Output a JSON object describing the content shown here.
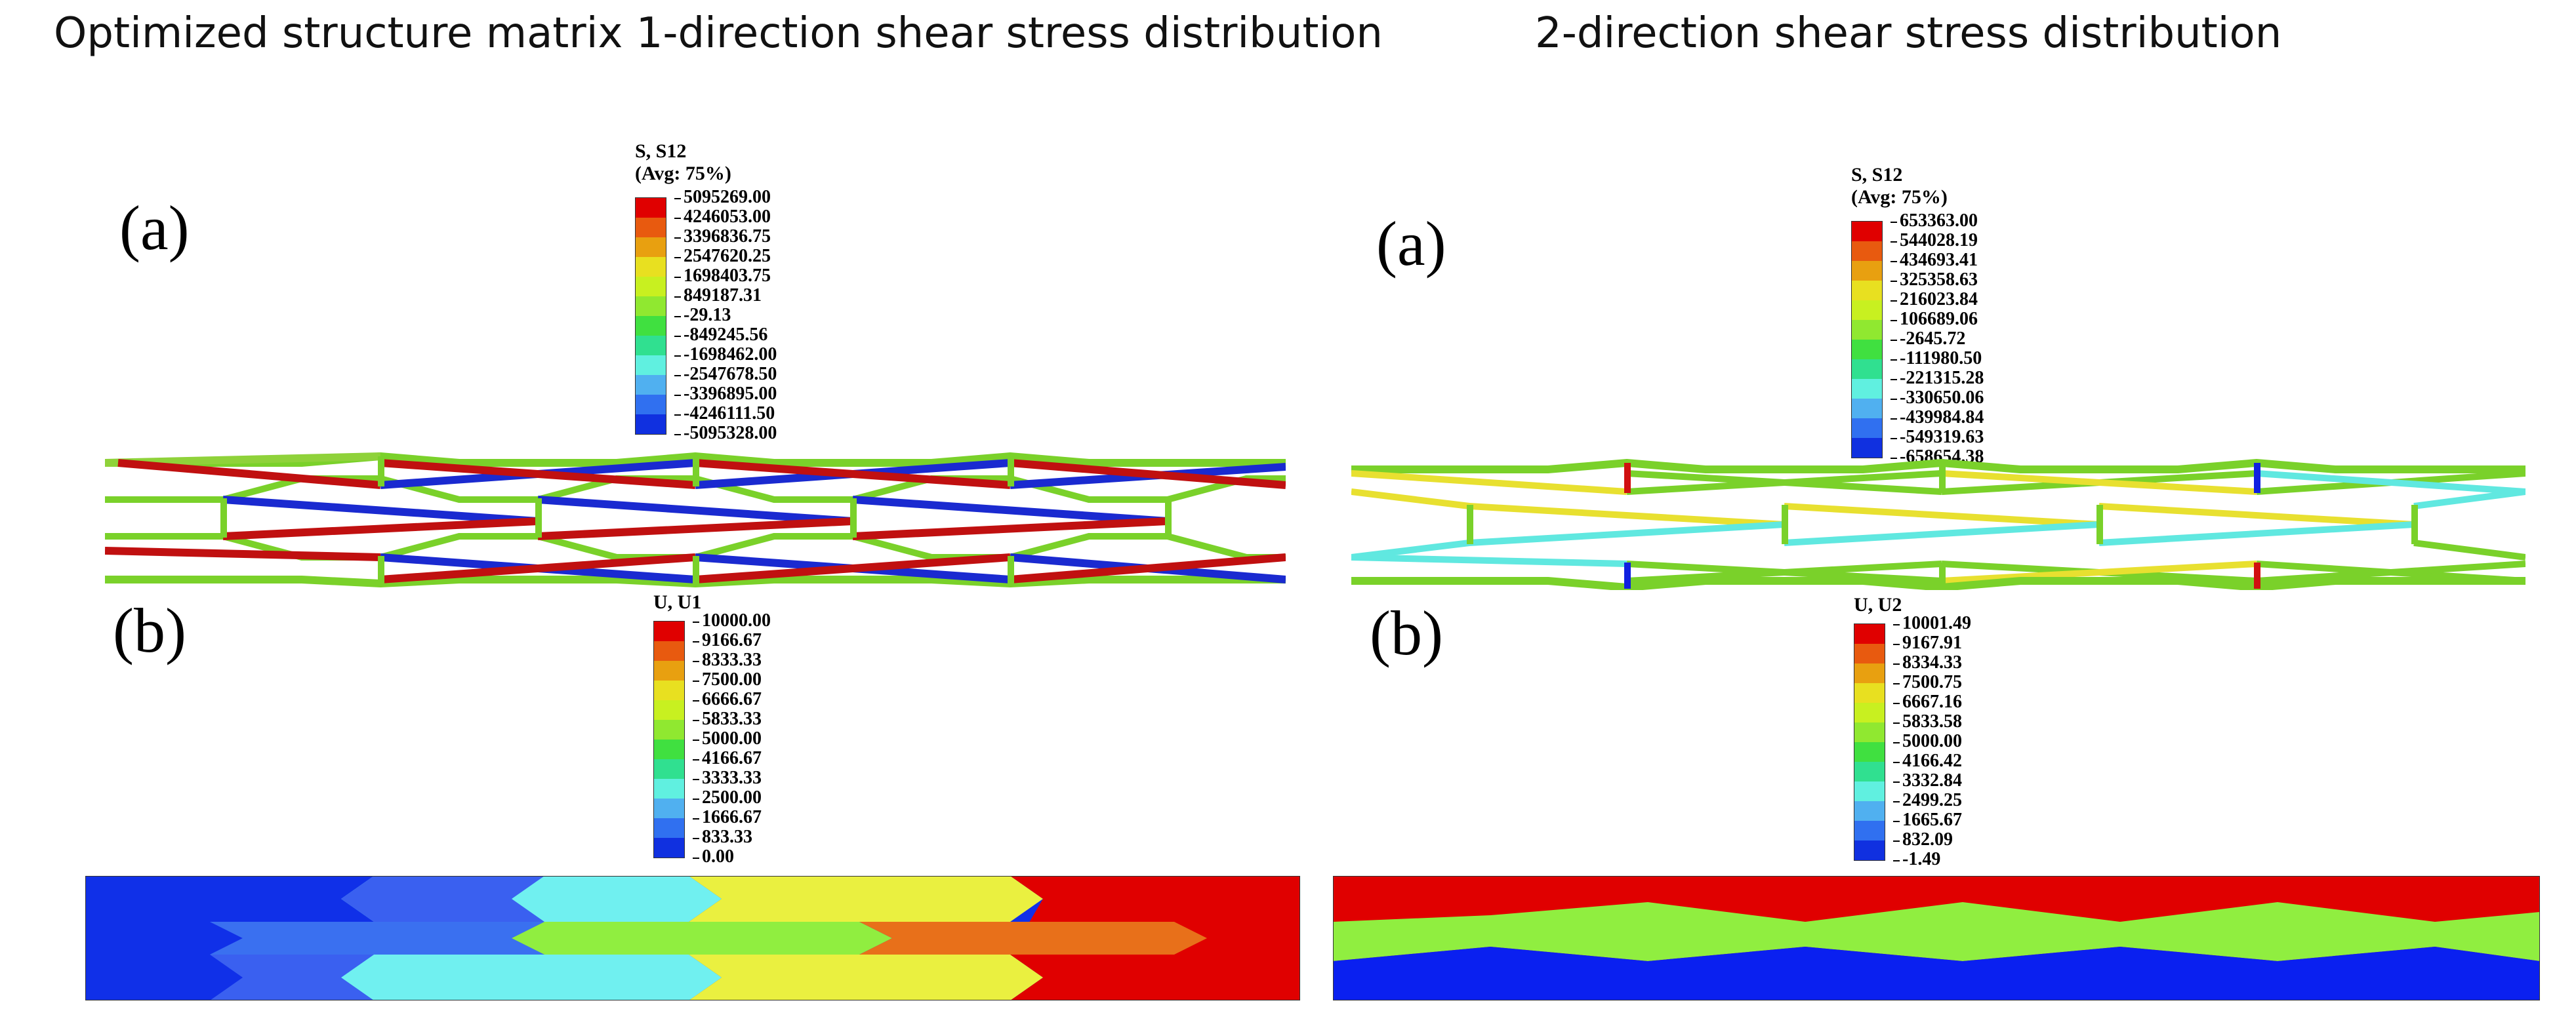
{
  "titles": {
    "left": "Optimized structure matrix 1-direction shear stress distribution",
    "right": "2-direction shear stress distribution"
  },
  "panel_labels": {
    "a": "(a)",
    "b": "(b)"
  },
  "legend_colors": [
    "#e00000",
    "#e85a0f",
    "#e8a010",
    "#e8e020",
    "#c8f020",
    "#90e830",
    "#40e040",
    "#30e090",
    "#60f0e0",
    "#50b0f0",
    "#3070f0",
    "#1030e0",
    "#0010f0"
  ],
  "legends": {
    "left_a": {
      "title1": "S, S12",
      "title2": "(Avg: 75%)",
      "values": [
        "5095269.00",
        "4246053.00",
        "3396836.75",
        "2547620.25",
        "1698403.75",
        "849187.31",
        "-29.13",
        "-849245.56",
        "-1698462.00",
        "-2547678.50",
        "-3396895.00",
        "-4246111.50",
        "-5095328.00"
      ]
    },
    "right_a": {
      "title1": "S, S12",
      "title2": "(Avg: 75%)",
      "values": [
        "653363.00",
        "544028.19",
        "434693.41",
        "325358.63",
        "216023.84",
        "106689.06",
        "-2645.72",
        "-111980.50",
        "-221315.28",
        "-330650.06",
        "-439984.84",
        "-549319.63",
        "-658654.38"
      ]
    },
    "left_b": {
      "title1": "U, U1",
      "title2": "",
      "values": [
        "10000.00",
        "9166.67",
        "8333.33",
        "7500.00",
        "6666.67",
        "5833.33",
        "5000.00",
        "4166.67",
        "3333.33",
        "2500.00",
        "1666.67",
        "833.33",
        "0.00"
      ]
    },
    "right_b": {
      "title1": "U, U2",
      "title2": "",
      "values": [
        "10001.49",
        "9167.91",
        "8334.33",
        "7500.75",
        "6667.16",
        "5833.58",
        "5000.00",
        "4166.42",
        "3332.84",
        "2499.25",
        "1665.67",
        "832.09",
        "-1.49"
      ]
    }
  }
}
